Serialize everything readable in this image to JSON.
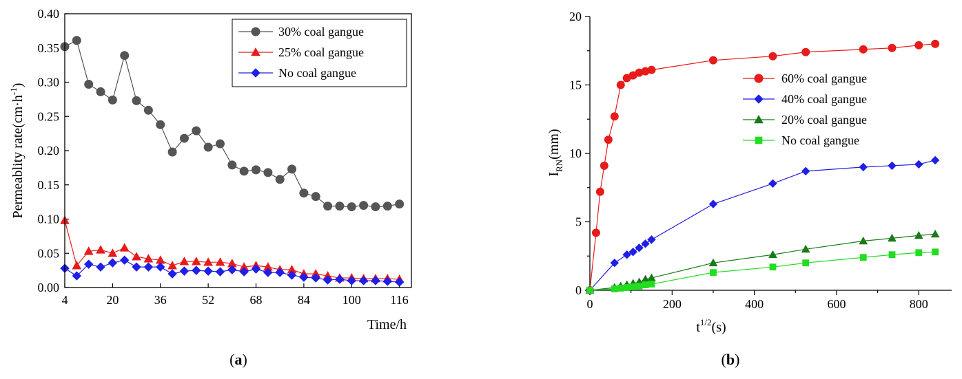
{
  "chart_data": [
    {
      "type": "line",
      "panel_label": "(a)",
      "xlabel": "Time/h",
      "ylabel": "Permeablity rate(cm·h",
      "ylabel_sup": "-1",
      "ylabel_tail": ")",
      "xlim": [
        4,
        120
      ],
      "ylim": [
        0,
        0.4
      ],
      "xticks": [
        4,
        20,
        36,
        52,
        68,
        84,
        100,
        116
      ],
      "yticks": [
        0.0,
        0.05,
        0.1,
        0.15,
        0.2,
        0.25,
        0.3,
        0.35,
        0.4
      ],
      "ytick_labels": [
        "0.00",
        "0.05",
        "0.10",
        "0.15",
        "0.20",
        "0.25",
        "0.30",
        "0.35",
        "0.40"
      ],
      "legend_position": "top-right",
      "x": [
        4,
        8,
        12,
        16,
        20,
        24,
        28,
        32,
        36,
        40,
        44,
        48,
        52,
        56,
        60,
        64,
        68,
        72,
        76,
        80,
        84,
        88,
        92,
        96,
        100,
        104,
        108,
        112,
        116
      ],
      "series": [
        {
          "name": "30% coal gangue",
          "color": "#555555",
          "marker": "circle",
          "values": [
            0.352,
            0.361,
            0.297,
            0.286,
            0.274,
            0.339,
            0.273,
            0.259,
            0.238,
            0.198,
            0.218,
            0.229,
            0.205,
            0.21,
            0.179,
            0.17,
            0.172,
            0.168,
            0.158,
            0.173,
            0.138,
            0.133,
            0.119,
            0.119,
            0.118,
            0.12,
            0.118,
            0.119,
            0.122
          ]
        },
        {
          "name": "25% coal gangue",
          "color": "#e81b1b",
          "marker": "triangle",
          "values": [
            0.098,
            0.032,
            0.053,
            0.055,
            0.05,
            0.058,
            0.045,
            0.042,
            0.04,
            0.032,
            0.038,
            0.038,
            0.037,
            0.037,
            0.035,
            0.03,
            0.032,
            0.03,
            0.026,
            0.026,
            0.02,
            0.02,
            0.017,
            0.014,
            0.014,
            0.013,
            0.013,
            0.013,
            0.012
          ]
        },
        {
          "name": "No coal gangue",
          "color": "#1f1fe6",
          "marker": "diamond",
          "values": [
            0.028,
            0.017,
            0.034,
            0.03,
            0.036,
            0.04,
            0.03,
            0.03,
            0.03,
            0.02,
            0.024,
            0.025,
            0.024,
            0.023,
            0.026,
            0.023,
            0.027,
            0.022,
            0.022,
            0.018,
            0.015,
            0.014,
            0.011,
            0.012,
            0.01,
            0.01,
            0.01,
            0.009,
            0.008
          ]
        }
      ]
    },
    {
      "type": "line",
      "panel_label": "(b)",
      "xlabel": "t",
      "xlabel_sup": "1/2",
      "xlabel_tail": "(s)",
      "ylabel": "I",
      "ylabel_sub": "RN",
      "ylabel_tail": "(mm)",
      "xlim": [
        0,
        880
      ],
      "ylim": [
        0,
        20
      ],
      "xticks": [
        0,
        200,
        400,
        600,
        800
      ],
      "yticks": [
        0,
        5,
        10,
        15,
        20
      ],
      "legend_position": "upper-right",
      "series": [
        {
          "name": "60% coal gangue",
          "color": "#e81b1b",
          "marker": "circle",
          "x": [
            0,
            15,
            25,
            35,
            45,
            60,
            75,
            90,
            105,
            120,
            135,
            150,
            300,
            445,
            525,
            665,
            735,
            800,
            840
          ],
          "values": [
            0,
            4.2,
            7.2,
            9.1,
            11.0,
            12.7,
            15.0,
            15.5,
            15.7,
            15.9,
            16.0,
            16.1,
            16.8,
            17.1,
            17.4,
            17.6,
            17.7,
            17.9,
            18.0
          ]
        },
        {
          "name": "40% coal gangue",
          "color": "#1f1fe6",
          "marker": "diamond",
          "x": [
            0,
            60,
            90,
            105,
            120,
            135,
            150,
            300,
            445,
            525,
            665,
            735,
            800,
            840
          ],
          "values": [
            0,
            2.0,
            2.6,
            2.8,
            3.1,
            3.4,
            3.7,
            6.3,
            7.8,
            8.7,
            9.0,
            9.1,
            9.2,
            9.5
          ]
        },
        {
          "name": "20% coal gangue",
          "color": "#1a7a1a",
          "marker": "triangle",
          "x": [
            0,
            60,
            75,
            90,
            105,
            120,
            135,
            150,
            300,
            445,
            525,
            665,
            735,
            800,
            840
          ],
          "values": [
            0,
            0.2,
            0.3,
            0.4,
            0.5,
            0.6,
            0.8,
            0.9,
            2.0,
            2.6,
            3.0,
            3.6,
            3.8,
            4.0,
            4.1
          ]
        },
        {
          "name": "No coal gangue",
          "color": "#22dd22",
          "marker": "square",
          "x": [
            0,
            60,
            75,
            90,
            105,
            120,
            135,
            150,
            300,
            445,
            525,
            665,
            735,
            800,
            840
          ],
          "values": [
            0,
            0.1,
            0.15,
            0.2,
            0.25,
            0.3,
            0.4,
            0.45,
            1.3,
            1.7,
            2.0,
            2.4,
            2.6,
            2.75,
            2.8
          ]
        }
      ]
    }
  ]
}
